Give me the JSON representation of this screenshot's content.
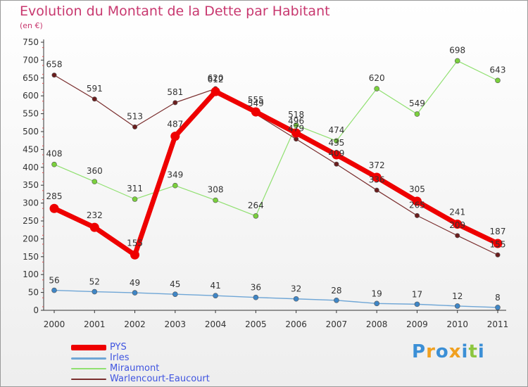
{
  "header": {
    "title": "Evolution du Montant de la Dette par Habitant",
    "subtitle": "(en €)"
  },
  "logo": {
    "text": "Proxiti",
    "letters": [
      {
        "ch": "P",
        "color": "#3b8fd6"
      },
      {
        "ch": "r",
        "color": "#f0a020"
      },
      {
        "ch": "o",
        "color": "#3b8fd6"
      },
      {
        "ch": "x",
        "color": "#f0a020"
      },
      {
        "ch": "i",
        "color": "#3b8fd6"
      },
      {
        "ch": "t",
        "color": "#8cc63f"
      },
      {
        "ch": "i",
        "color": "#3b8fd6"
      }
    ]
  },
  "chart_data": {
    "type": "line",
    "title": "Evolution du Montant de la Dette par Habitant",
    "subtitle": "(en €)",
    "x": [
      "2000",
      "2001",
      "2002",
      "2003",
      "2004",
      "2005",
      "2006",
      "2007",
      "2008",
      "2009",
      "2010",
      "2011"
    ],
    "ylim": [
      0,
      750
    ],
    "yticks": [
      0,
      50,
      100,
      150,
      200,
      250,
      300,
      350,
      400,
      450,
      500,
      550,
      600,
      650,
      700,
      750
    ],
    "grid": false,
    "legend_position": "bottom-left",
    "series": [
      {
        "name": "PYS",
        "color": "#ee0000",
        "values": [
          285,
          232,
          155,
          487,
          612,
          555,
          496,
          435,
          372,
          305,
          241,
          187
        ]
      },
      {
        "name": "Irles",
        "color": "#6fa6d6",
        "marker_color": "#3f86c6",
        "values": [
          56,
          52,
          49,
          45,
          41,
          36,
          32,
          28,
          19,
          17,
          12,
          8
        ]
      },
      {
        "name": "Miraumont",
        "color": "#90e070",
        "marker_color": "#7ad03c",
        "values": [
          408,
          360,
          311,
          349,
          308,
          264,
          null,
          474,
          620,
          549,
          698,
          643
        ],
        "extra_labels": [
          {
            "x": "2006",
            "value": 518
          }
        ]
      },
      {
        "name": "Warlencourt-Eaucourt",
        "color": "#7a2e2e",
        "marker_color": "#6b1e1e",
        "values": [
          658,
          591,
          513,
          581,
          620,
          549,
          479,
          409,
          336,
          265,
          209,
          155
        ]
      }
    ],
    "data_labels": {
      "PYS": [
        "285",
        "232",
        "155",
        "487",
        "612",
        "555",
        "496",
        "435",
        "372",
        "305",
        "241",
        "187"
      ],
      "Irles": [
        "56",
        "52",
        "49",
        "45",
        "41",
        "36",
        "32",
        "28",
        "19",
        "17",
        "12",
        "8"
      ],
      "Miraumont": [
        "408",
        "360",
        "311",
        "349",
        "308",
        "264",
        "518",
        "474",
        "620",
        "549",
        "698",
        "643"
      ],
      "Warlencourt-Eaucourt": [
        "658",
        "591",
        "513",
        "581",
        "620",
        "549",
        "479",
        "409",
        "336",
        "265",
        "209",
        "155"
      ]
    }
  }
}
